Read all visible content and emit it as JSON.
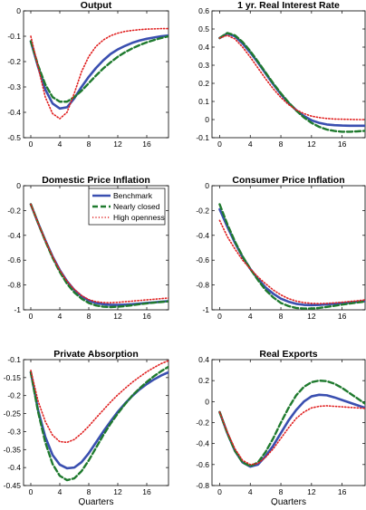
{
  "figure": {
    "series_styles": [
      {
        "name": "Benchmark",
        "color": "#3a4fb0",
        "dash": "",
        "width": 2.6
      },
      {
        "name": "Nearly closed",
        "color": "#1f7a2e",
        "dash": "6,3",
        "width": 2.4
      },
      {
        "name": "High openness",
        "color": "#e02020",
        "dash": "1.2,2.2",
        "width": 1.6
      }
    ],
    "legend": {
      "entries": [
        "Benchmark",
        "Nearly closed",
        "High openness"
      ],
      "panel_index": 2,
      "placement": "top-right"
    }
  },
  "chart_data": [
    {
      "type": "line",
      "title": "Output",
      "xlabel": "",
      "ylabel": "",
      "xlim": [
        -1,
        19
      ],
      "ylim": [
        -0.5,
        0
      ],
      "xticks": [
        0,
        4,
        8,
        12,
        16
      ],
      "yticks": [
        0,
        -0.1,
        -0.2,
        -0.3,
        -0.4,
        -0.5
      ],
      "ytick_labels": [
        "0",
        "-0.1",
        "-0.2",
        "-0.3",
        "-0.4",
        "-0.5"
      ],
      "x": [
        0,
        1,
        2,
        3,
        4,
        5,
        6,
        7,
        8,
        9,
        10,
        11,
        12,
        13,
        14,
        15,
        16,
        17,
        18,
        19
      ],
      "series": [
        {
          "name": "Benchmark",
          "values": [
            -0.12,
            -0.22,
            -0.31,
            -0.365,
            -0.385,
            -0.38,
            -0.345,
            -0.3,
            -0.26,
            -0.225,
            -0.195,
            -0.17,
            -0.152,
            -0.138,
            -0.126,
            -0.117,
            -0.11,
            -0.105,
            -0.1,
            -0.097
          ]
        },
        {
          "name": "Nearly closed",
          "values": [
            -0.12,
            -0.215,
            -0.29,
            -0.34,
            -0.358,
            -0.358,
            -0.34,
            -0.315,
            -0.285,
            -0.255,
            -0.227,
            -0.203,
            -0.181,
            -0.163,
            -0.148,
            -0.135,
            -0.124,
            -0.115,
            -0.107,
            -0.1
          ]
        },
        {
          "name": "High openness",
          "values": [
            -0.1,
            -0.22,
            -0.34,
            -0.405,
            -0.425,
            -0.4,
            -0.325,
            -0.24,
            -0.18,
            -0.14,
            -0.115,
            -0.098,
            -0.088,
            -0.081,
            -0.077,
            -0.074,
            -0.072,
            -0.071,
            -0.07,
            -0.07
          ]
        }
      ]
    },
    {
      "type": "line",
      "title": "1 yr. Real Interest Rate",
      "xlabel": "",
      "ylabel": "",
      "xlim": [
        -1,
        19
      ],
      "ylim": [
        -0.1,
        0.6
      ],
      "xticks": [
        0,
        4,
        8,
        12,
        16
      ],
      "yticks": [
        0.6,
        0.5,
        0.4,
        0.3,
        0.2,
        0.1,
        0,
        -0.1
      ],
      "ytick_labels": [
        "0.6",
        "0.5",
        "0.4",
        "0.3",
        "0.2",
        "0.1",
        "0",
        "-0.1"
      ],
      "x": [
        0,
        1,
        2,
        3,
        4,
        5,
        6,
        7,
        8,
        9,
        10,
        11,
        12,
        13,
        14,
        15,
        16,
        17,
        18,
        19
      ],
      "series": [
        {
          "name": "Benchmark",
          "values": [
            0.45,
            0.475,
            0.46,
            0.42,
            0.37,
            0.315,
            0.255,
            0.195,
            0.14,
            0.092,
            0.052,
            0.02,
            -0.004,
            -0.018,
            -0.027,
            -0.031,
            -0.033,
            -0.034,
            -0.034,
            -0.034
          ]
        },
        {
          "name": "Nearly closed",
          "values": [
            0.45,
            0.478,
            0.465,
            0.428,
            0.378,
            0.32,
            0.26,
            0.2,
            0.145,
            0.095,
            0.05,
            0.012,
            -0.018,
            -0.04,
            -0.055,
            -0.063,
            -0.067,
            -0.067,
            -0.065,
            -0.062
          ]
        },
        {
          "name": "High openness",
          "values": [
            0.45,
            0.465,
            0.445,
            0.4,
            0.345,
            0.285,
            0.225,
            0.17,
            0.122,
            0.083,
            0.054,
            0.033,
            0.019,
            0.011,
            0.006,
            0.003,
            0.002,
            0.001,
            0,
            0
          ]
        }
      ]
    },
    {
      "type": "line",
      "title": "Domestic Price Inflation",
      "xlabel": "",
      "ylabel": "",
      "xlim": [
        -1,
        19
      ],
      "ylim": [
        -1,
        0
      ],
      "xticks": [
        0,
        4,
        8,
        12,
        16
      ],
      "yticks": [
        0,
        -0.2,
        -0.4,
        -0.6,
        -0.8,
        -1
      ],
      "ytick_labels": [
        "0",
        "-0.2",
        "-0.4",
        "-0.6",
        "-0.8",
        "-1"
      ],
      "x": [
        0,
        1,
        2,
        3,
        4,
        5,
        6,
        7,
        8,
        9,
        10,
        11,
        12,
        13,
        14,
        15,
        16,
        17,
        18,
        19
      ],
      "series": [
        {
          "name": "Benchmark",
          "values": [
            -0.15,
            -0.3,
            -0.44,
            -0.57,
            -0.68,
            -0.77,
            -0.84,
            -0.89,
            -0.925,
            -0.945,
            -0.955,
            -0.96,
            -0.96,
            -0.958,
            -0.955,
            -0.95,
            -0.945,
            -0.94,
            -0.935,
            -0.93
          ]
        },
        {
          "name": "Nearly closed",
          "values": [
            -0.15,
            -0.3,
            -0.445,
            -0.58,
            -0.695,
            -0.79,
            -0.86,
            -0.91,
            -0.945,
            -0.965,
            -0.975,
            -0.978,
            -0.975,
            -0.97,
            -0.963,
            -0.955,
            -0.948,
            -0.942,
            -0.937,
            -0.932
          ]
        },
        {
          "name": "High openness",
          "values": [
            -0.15,
            -0.3,
            -0.44,
            -0.57,
            -0.68,
            -0.77,
            -0.835,
            -0.885,
            -0.918,
            -0.935,
            -0.942,
            -0.943,
            -0.94,
            -0.935,
            -0.93,
            -0.925,
            -0.92,
            -0.915,
            -0.91,
            -0.905
          ]
        }
      ]
    },
    {
      "type": "line",
      "title": "Consumer Price Inflation",
      "xlabel": "",
      "ylabel": "",
      "xlim": [
        -1,
        19
      ],
      "ylim": [
        -1,
        0
      ],
      "xticks": [
        0,
        4,
        8,
        12,
        16
      ],
      "yticks": [
        0,
        -0.2,
        -0.4,
        -0.6,
        -0.8,
        -1
      ],
      "ytick_labels": [
        "0",
        "-0.2",
        "-0.4",
        "-0.6",
        "-0.8",
        "-1"
      ],
      "x": [
        0,
        1,
        2,
        3,
        4,
        5,
        6,
        7,
        8,
        9,
        10,
        11,
        12,
        13,
        14,
        15,
        16,
        17,
        18,
        19
      ],
      "series": [
        {
          "name": "Benchmark",
          "values": [
            -0.19,
            -0.33,
            -0.46,
            -0.575,
            -0.67,
            -0.75,
            -0.82,
            -0.87,
            -0.91,
            -0.935,
            -0.952,
            -0.96,
            -0.962,
            -0.96,
            -0.956,
            -0.951,
            -0.946,
            -0.941,
            -0.936,
            -0.93
          ]
        },
        {
          "name": "Nearly closed",
          "values": [
            -0.15,
            -0.31,
            -0.45,
            -0.57,
            -0.67,
            -0.76,
            -0.84,
            -0.9,
            -0.945,
            -0.97,
            -0.985,
            -0.99,
            -0.99,
            -0.985,
            -0.977,
            -0.968,
            -0.958,
            -0.949,
            -0.941,
            -0.934
          ]
        },
        {
          "name": "High openness",
          "values": [
            -0.28,
            -0.41,
            -0.51,
            -0.6,
            -0.67,
            -0.735,
            -0.79,
            -0.84,
            -0.88,
            -0.91,
            -0.93,
            -0.942,
            -0.948,
            -0.95,
            -0.948,
            -0.944,
            -0.939,
            -0.933,
            -0.927,
            -0.92
          ]
        }
      ]
    },
    {
      "type": "line",
      "title": "Private Absorption",
      "xlabel": "Quarters",
      "ylabel": "",
      "xlim": [
        -1,
        19
      ],
      "ylim": [
        -0.45,
        -0.1
      ],
      "xticks": [
        0,
        4,
        8,
        12,
        16
      ],
      "yticks": [
        -0.1,
        -0.15,
        -0.2,
        -0.25,
        -0.3,
        -0.35,
        -0.4,
        -0.45
      ],
      "ytick_labels": [
        "-0.1",
        "-0.15",
        "-0.2",
        "-0.25",
        "-0.3",
        "-0.35",
        "-0.4",
        "-0.45"
      ],
      "x": [
        0,
        1,
        2,
        3,
        4,
        5,
        6,
        7,
        8,
        9,
        10,
        11,
        12,
        13,
        14,
        15,
        16,
        17,
        18,
        19
      ],
      "series": [
        {
          "name": "Benchmark",
          "values": [
            -0.135,
            -0.24,
            -0.315,
            -0.365,
            -0.392,
            -0.402,
            -0.4,
            -0.385,
            -0.36,
            -0.33,
            -0.3,
            -0.272,
            -0.245,
            -0.222,
            -0.201,
            -0.183,
            -0.168,
            -0.155,
            -0.144,
            -0.135
          ]
        },
        {
          "name": "Nearly closed",
          "values": [
            -0.135,
            -0.245,
            -0.33,
            -0.39,
            -0.423,
            -0.435,
            -0.43,
            -0.41,
            -0.38,
            -0.345,
            -0.31,
            -0.278,
            -0.25,
            -0.224,
            -0.2,
            -0.18,
            -0.162,
            -0.146,
            -0.132,
            -0.12
          ]
        },
        {
          "name": "High openness",
          "values": [
            -0.13,
            -0.215,
            -0.272,
            -0.31,
            -0.328,
            -0.33,
            -0.322,
            -0.305,
            -0.285,
            -0.262,
            -0.24,
            -0.218,
            -0.198,
            -0.18,
            -0.163,
            -0.148,
            -0.134,
            -0.122,
            -0.111,
            -0.103
          ]
        }
      ]
    },
    {
      "type": "line",
      "title": "Real Exports",
      "xlabel": "Quarters",
      "ylabel": "",
      "xlim": [
        -1,
        19
      ],
      "ylim": [
        -0.8,
        0.4
      ],
      "xticks": [
        0,
        4,
        8,
        12,
        16
      ],
      "yticks": [
        0.4,
        0.2,
        0,
        -0.2,
        -0.4,
        -0.6,
        -0.8
      ],
      "ytick_labels": [
        "0.4",
        "0.2",
        "0",
        "-0.2",
        "-0.4",
        "-0.6",
        "-0.8"
      ],
      "x": [
        0,
        1,
        2,
        3,
        4,
        5,
        6,
        7,
        8,
        9,
        10,
        11,
        12,
        13,
        14,
        15,
        16,
        17,
        18,
        19
      ],
      "series": [
        {
          "name": "Benchmark",
          "values": [
            -0.1,
            -0.3,
            -0.47,
            -0.58,
            -0.62,
            -0.6,
            -0.52,
            -0.42,
            -0.3,
            -0.18,
            -0.08,
            0,
            0.05,
            0.065,
            0.06,
            0.04,
            0.015,
            -0.01,
            -0.035,
            -0.06
          ]
        },
        {
          "name": "Nearly closed",
          "values": [
            -0.1,
            -0.3,
            -0.47,
            -0.58,
            -0.615,
            -0.58,
            -0.48,
            -0.35,
            -0.2,
            -0.06,
            0.06,
            0.14,
            0.185,
            0.2,
            0.195,
            0.17,
            0.13,
            0.08,
            0.03,
            -0.02
          ]
        },
        {
          "name": "High openness",
          "values": [
            -0.1,
            -0.29,
            -0.45,
            -0.56,
            -0.6,
            -0.59,
            -0.53,
            -0.45,
            -0.35,
            -0.25,
            -0.16,
            -0.1,
            -0.06,
            -0.045,
            -0.04,
            -0.045,
            -0.05,
            -0.055,
            -0.06,
            -0.065
          ]
        }
      ]
    }
  ]
}
